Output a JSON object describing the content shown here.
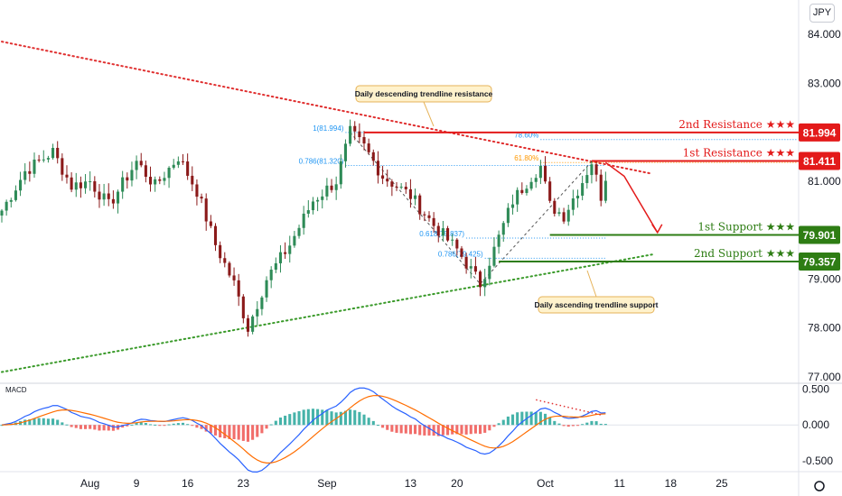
{
  "currency_button": "JPY",
  "macd": {
    "label": "MACD",
    "ticks": [
      {
        "label": "0.500",
        "value": 0.5
      },
      {
        "label": "0.000",
        "value": 0.0
      },
      {
        "label": "-0.500",
        "value": -0.5
      }
    ],
    "ylim": [
      -0.65,
      0.58
    ]
  },
  "colors": {
    "resistance": "#e31a1a",
    "support": "#2e7d14",
    "descending_trend": "#e03030",
    "ascending_trend": "#3a9a2a",
    "candle_up": "#2e8b57",
    "candle_down": "#8b1a1a",
    "macd_line": "#2962ff",
    "signal_line": "#ff6d00",
    "hist_up": "#26a69a",
    "hist_down": "#ef5350",
    "fib": "#2196f3",
    "fib_618": "#ff9800",
    "note_bg": "#fff2cc",
    "note_border": "#e6b35a"
  },
  "chart_data": {
    "type": "candlestick",
    "symbol_currency": "JPY",
    "y_ticks": [
      {
        "label": "84.000",
        "value": 84.0
      },
      {
        "label": "83.000",
        "value": 83.0
      },
      {
        "label": "81.000",
        "value": 81.0
      },
      {
        "label": "79.000",
        "value": 79.0
      },
      {
        "label": "78.000",
        "value": 78.0
      },
      {
        "label": "77.000",
        "value": 77.0
      }
    ],
    "ylim": [
      76.87,
      84.7
    ],
    "x_ticks": [
      {
        "label": "Aug",
        "index": 19
      },
      {
        "label": "9",
        "index": 29
      },
      {
        "label": "16",
        "index": 40
      },
      {
        "label": "23",
        "index": 52
      },
      {
        "label": "Sep",
        "index": 70
      },
      {
        "label": "13",
        "index": 88
      },
      {
        "label": "20",
        "index": 98
      },
      {
        "label": "Oct",
        "index": 117
      },
      {
        "label": "11",
        "index": 133
      },
      {
        "label": "18",
        "index": 144
      },
      {
        "label": "25",
        "index": 155
      }
    ],
    "bar_count": 170,
    "key_points": [
      {
        "index": 0,
        "price": 80.4
      },
      {
        "index": 5,
        "price": 81.2
      },
      {
        "index": 11,
        "price": 81.6
      },
      {
        "index": 15,
        "price": 80.9
      },
      {
        "index": 19,
        "price": 81.0
      },
      {
        "index": 23,
        "price": 80.5
      },
      {
        "index": 29,
        "price": 81.4
      },
      {
        "index": 33,
        "price": 80.9
      },
      {
        "index": 38,
        "price": 81.5
      },
      {
        "index": 42,
        "price": 80.8
      },
      {
        "index": 46,
        "price": 79.7
      },
      {
        "index": 50,
        "price": 78.9
      },
      {
        "index": 53,
        "price": 78.0
      },
      {
        "index": 57,
        "price": 79.0
      },
      {
        "index": 62,
        "price": 79.7
      },
      {
        "index": 67,
        "price": 80.6
      },
      {
        "index": 72,
        "price": 81.0
      },
      {
        "index": 75,
        "price": 81.994
      },
      {
        "index": 78,
        "price": 81.7
      },
      {
        "index": 82,
        "price": 81.1
      },
      {
        "index": 88,
        "price": 80.7
      },
      {
        "index": 93,
        "price": 80.1
      },
      {
        "index": 98,
        "price": 79.6
      },
      {
        "index": 103,
        "price": 78.9
      },
      {
        "index": 106,
        "price": 79.6
      },
      {
        "index": 110,
        "price": 80.6
      },
      {
        "index": 114,
        "price": 81.1
      },
      {
        "index": 116,
        "price": 81.3
      },
      {
        "index": 118,
        "price": 80.5
      },
      {
        "index": 121,
        "price": 80.3
      },
      {
        "index": 125,
        "price": 81.0
      },
      {
        "index": 127,
        "price": 81.4
      },
      {
        "index": 129,
        "price": 80.7
      },
      {
        "index": 130,
        "price": 81.1
      }
    ],
    "levels": [
      {
        "name": "2nd Resistance",
        "stars": "★★★",
        "value": 81.994,
        "tag": "81.994",
        "kind": "resistance"
      },
      {
        "name": "1st Resistance",
        "stars": "★★★",
        "value": 81.411,
        "tag": "81.411",
        "kind": "resistance"
      },
      {
        "name": "1st Support",
        "stars": "★★★",
        "value": 79.901,
        "tag": "79.901",
        "kind": "support"
      },
      {
        "name": "2nd Support",
        "stars": "★★★",
        "value": 79.357,
        "tag": "79.357",
        "kind": "support"
      }
    ],
    "fib_levels": [
      {
        "label": "1(81.994)",
        "value": 81.994
      },
      {
        "label": "0.786(81.320)",
        "value": 81.32
      },
      {
        "label": "0.618(79.837)",
        "value": 79.837
      },
      {
        "label": "0.786(79.425)",
        "value": 79.425
      },
      {
        "label": "78.60%",
        "value": 81.85
      },
      {
        "label": "61.80%",
        "value": 81.38
      }
    ],
    "trendlines": [
      {
        "name": "Daily descending trendline resistance",
        "from": {
          "index": 0,
          "price": 83.85
        },
        "to": {
          "index": 140,
          "price": 81.15
        }
      },
      {
        "name": "Daily ascending trendline support",
        "from": {
          "index": 0,
          "price": 77.1
        },
        "to": {
          "index": 140,
          "price": 79.5
        }
      }
    ],
    "annotations": [
      {
        "text": "Daily descending trendline resistance"
      },
      {
        "text": "Daily ascending trendline support"
      }
    ]
  }
}
